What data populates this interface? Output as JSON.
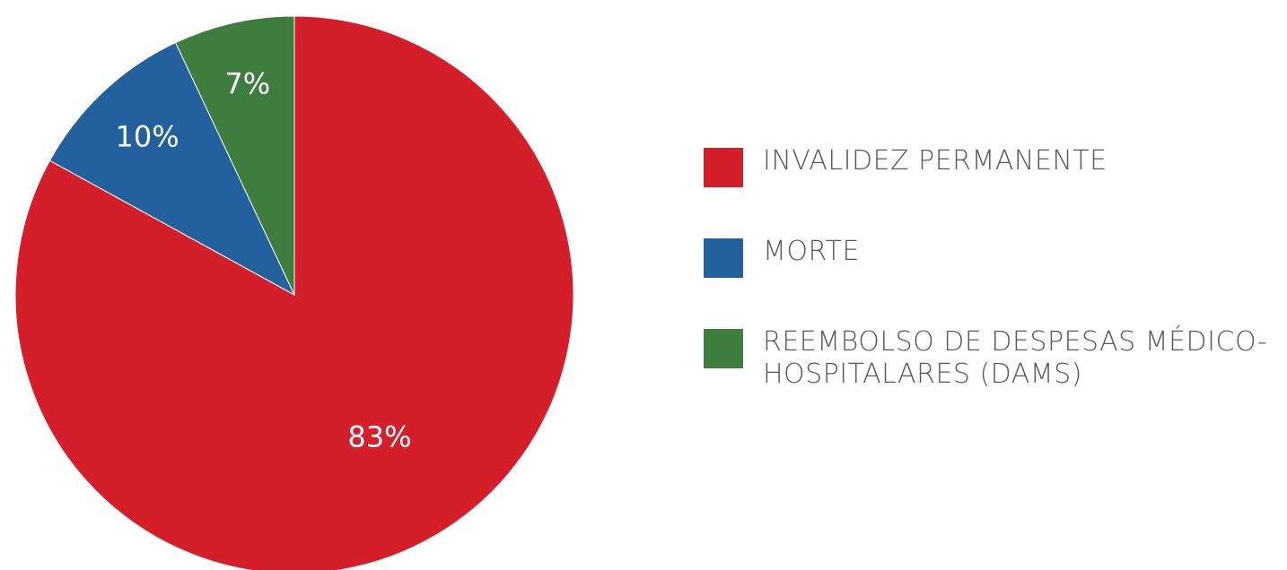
{
  "chart_data": {
    "type": "pie",
    "categories": [
      "INVALIDEZ PERMANENTE",
      "MORTE",
      "REEMBOLSO DE DESPESAS MÉDICO-HOSPITALARES (DAMS)"
    ],
    "values": [
      83,
      10,
      7
    ],
    "value_labels": [
      "83%",
      "10%",
      "7%"
    ],
    "colors": [
      "#d41f2a",
      "#22619e",
      "#3f7d3f"
    ]
  }
}
